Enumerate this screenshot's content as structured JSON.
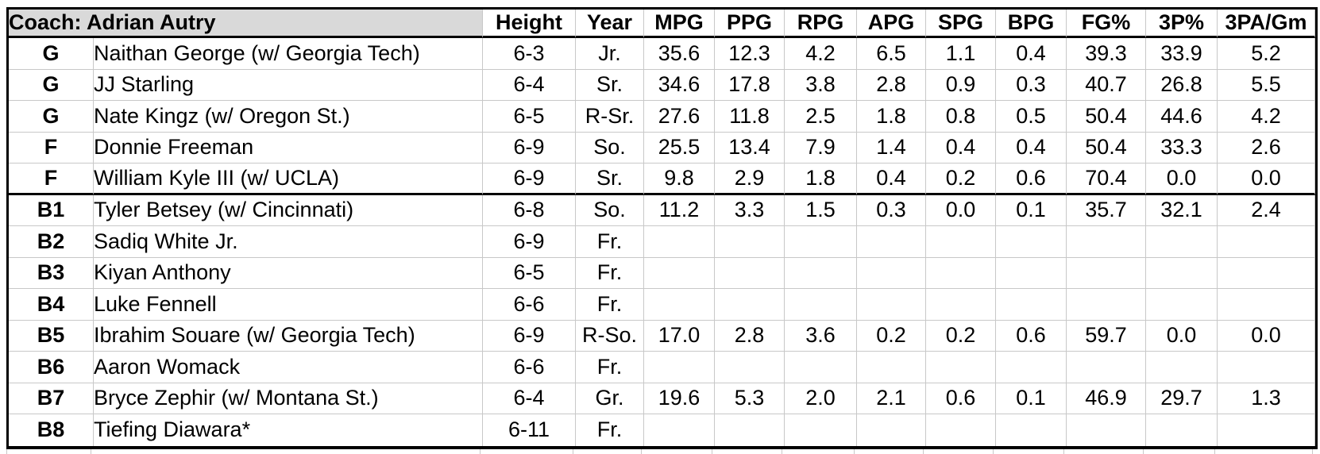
{
  "table": {
    "coach_header": "Coach: Adrian Autry",
    "stat_columns": [
      "Height",
      "Year",
      "MPG",
      "PPG",
      "RPG",
      "APG",
      "SPG",
      "BPG",
      "FG%",
      "3P%",
      "3PA/Gm"
    ],
    "rows": [
      {
        "group": "starters",
        "cells": [
          "G",
          "Naithan George (w/ Georgia Tech)",
          "6-3",
          "Jr.",
          "35.6",
          "12.3",
          "4.2",
          "6.5",
          "1.1",
          "0.4",
          "39.3",
          "33.9",
          "5.2"
        ]
      },
      {
        "group": "starters",
        "cells": [
          "G",
          "JJ Starling",
          "6-4",
          "Sr.",
          "34.6",
          "17.8",
          "3.8",
          "2.8",
          "0.9",
          "0.3",
          "40.7",
          "26.8",
          "5.5"
        ]
      },
      {
        "group": "starters",
        "cells": [
          "G",
          "Nate Kingz (w/ Oregon St.)",
          "6-5",
          "R-Sr.",
          "27.6",
          "11.8",
          "2.5",
          "1.8",
          "0.8",
          "0.5",
          "50.4",
          "44.6",
          "4.2"
        ]
      },
      {
        "group": "starters",
        "cells": [
          "F",
          "Donnie Freeman",
          "6-9",
          "So.",
          "25.5",
          "13.4",
          "7.9",
          "1.4",
          "0.4",
          "0.4",
          "50.4",
          "33.3",
          "2.6"
        ]
      },
      {
        "group": "starters",
        "cells": [
          "F",
          "William Kyle III (w/ UCLA)",
          "6-9",
          "Sr.",
          "9.8",
          "2.9",
          "1.8",
          "0.4",
          "0.2",
          "0.6",
          "70.4",
          "0.0",
          "0.0"
        ]
      },
      {
        "group": "bench",
        "cells": [
          "B1",
          "Tyler Betsey (w/ Cincinnati)",
          "6-8",
          "So.",
          "11.2",
          "3.3",
          "1.5",
          "0.3",
          "0.0",
          "0.1",
          "35.7",
          "32.1",
          "2.4"
        ]
      },
      {
        "group": "bench",
        "cells": [
          "B2",
          "Sadiq White Jr.",
          "6-9",
          "Fr.",
          "",
          "",
          "",
          "",
          "",
          "",
          "",
          "",
          ""
        ]
      },
      {
        "group": "bench",
        "cells": [
          "B3",
          "Kiyan Anthony",
          "6-5",
          "Fr.",
          "",
          "",
          "",
          "",
          "",
          "",
          "",
          "",
          ""
        ]
      },
      {
        "group": "bench",
        "cells": [
          "B4",
          "Luke Fennell",
          "6-6",
          "Fr.",
          "",
          "",
          "",
          "",
          "",
          "",
          "",
          "",
          ""
        ]
      },
      {
        "group": "bench",
        "cells": [
          "B5",
          "Ibrahim Souare (w/ Georgia Tech)",
          "6-9",
          "R-So.",
          "17.0",
          "2.8",
          "3.6",
          "0.2",
          "0.2",
          "0.6",
          "59.7",
          "0.0",
          "0.0"
        ]
      },
      {
        "group": "bench",
        "cells": [
          "B6",
          "Aaron Womack",
          "6-6",
          "Fr.",
          "",
          "",
          "",
          "",
          "",
          "",
          "",
          "",
          ""
        ]
      },
      {
        "group": "bench",
        "cells": [
          "B7",
          "Bryce Zephir (w/ Montana St.)",
          "6-4",
          "Gr.",
          "19.6",
          "5.3",
          "2.0",
          "2.1",
          "0.6",
          "0.1",
          "46.9",
          "29.7",
          "1.3"
        ]
      },
      {
        "group": "bench",
        "cells": [
          "B8",
          "Tiefing Diawara*",
          "6-11",
          "Fr.",
          "",
          "",
          "",
          "",
          "",
          "",
          "",
          "",
          ""
        ]
      }
    ],
    "colors": {
      "header_fill": "#d9d9d9",
      "gridline": "#c8c8c8",
      "border": "#000000",
      "background": "#ffffff"
    }
  }
}
